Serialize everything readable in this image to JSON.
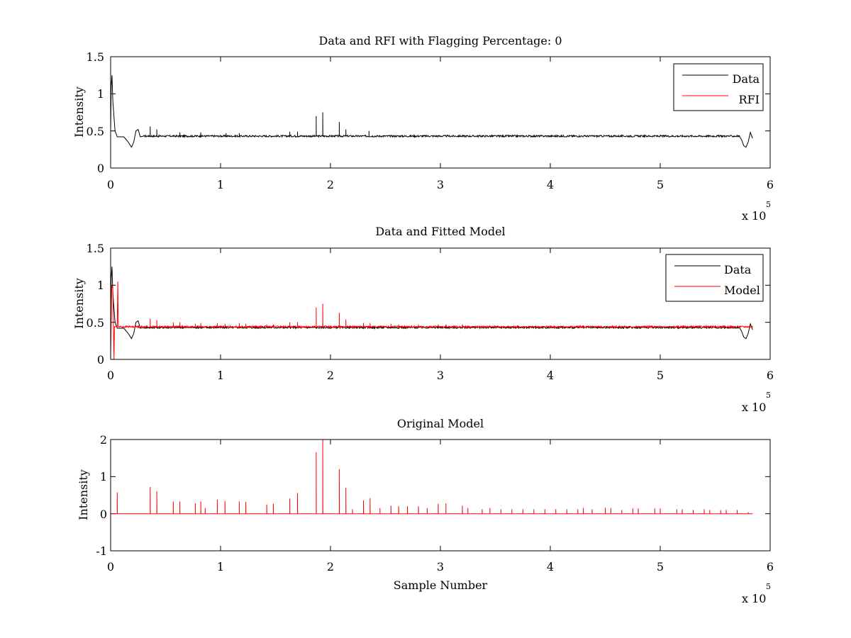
{
  "chart_data": [
    {
      "type": "line",
      "title": "Data and RFI with Flagging Percentage: 0",
      "xlabel": "",
      "ylabel": "Intensity",
      "x_exponent": "x 10",
      "x_exponent_power": "5",
      "xlim": [
        0,
        6
      ],
      "ylim": [
        0,
        1.5
      ],
      "xticks": [
        "0",
        "1",
        "2",
        "3",
        "4",
        "5",
        "6"
      ],
      "yticks": [
        "0",
        "0.5",
        "1",
        "1.5"
      ],
      "legend_position": "top-right",
      "series": [
        {
          "name": "Data",
          "color": "#000000",
          "baseline": 0.43,
          "edge_start": [
            [
              0,
              0.5
            ],
            [
              0.005,
              1.1
            ],
            [
              0.012,
              1.25
            ],
            [
              0.02,
              0.9
            ],
            [
              0.04,
              0.5
            ],
            [
              0.06,
              0.42
            ],
            [
              0.12,
              0.42
            ],
            [
              0.16,
              0.35
            ],
            [
              0.19,
              0.28
            ],
            [
              0.21,
              0.35
            ],
            [
              0.23,
              0.5
            ],
            [
              0.25,
              0.52
            ],
            [
              0.27,
              0.42
            ],
            [
              0.3,
              0.43
            ]
          ],
          "edge_end": [
            [
              5.72,
              0.43
            ],
            [
              5.74,
              0.38
            ],
            [
              5.76,
              0.3
            ],
            [
              5.78,
              0.28
            ],
            [
              5.8,
              0.35
            ],
            [
              5.82,
              0.48
            ],
            [
              5.84,
              0.4
            ]
          ],
          "x_end": 5.84,
          "spikes": [
            [
              0.36,
              0.56
            ],
            [
              0.42,
              0.52
            ],
            [
              1.87,
              0.7
            ],
            [
              1.93,
              0.75
            ],
            [
              2.08,
              0.62
            ],
            [
              2.14,
              0.52
            ],
            [
              2.35,
              0.5
            ],
            [
              0.63,
              0.48
            ],
            [
              0.82,
              0.48
            ],
            [
              1.05,
              0.47
            ],
            [
              1.17,
              0.47
            ],
            [
              1.63,
              0.49
            ],
            [
              1.7,
              0.49
            ]
          ]
        },
        {
          "name": "RFI",
          "color": "#ff0000",
          "values": []
        }
      ]
    },
    {
      "type": "line",
      "title": "Data and Fitted Model",
      "xlabel": "",
      "ylabel": "Intensity",
      "x_exponent": "x 10",
      "x_exponent_power": "5",
      "xlim": [
        0,
        6
      ],
      "ylim": [
        0,
        1.5
      ],
      "xticks": [
        "0",
        "1",
        "2",
        "3",
        "4",
        "5",
        "6"
      ],
      "yticks": [
        "0",
        "0.5",
        "1",
        "1.5"
      ],
      "legend_position": "top-right",
      "series": [
        {
          "name": "Data",
          "color": "#000000",
          "baseline": 0.43,
          "edge_start": [
            [
              0,
              0.5
            ],
            [
              0.005,
              1.1
            ],
            [
              0.012,
              1.25
            ],
            [
              0.02,
              0.9
            ],
            [
              0.04,
              0.5
            ],
            [
              0.06,
              0.42
            ],
            [
              0.12,
              0.42
            ],
            [
              0.16,
              0.35
            ],
            [
              0.19,
              0.28
            ],
            [
              0.21,
              0.35
            ],
            [
              0.23,
              0.5
            ],
            [
              0.25,
              0.52
            ],
            [
              0.27,
              0.42
            ],
            [
              0.3,
              0.43
            ]
          ],
          "edge_end": [
            [
              5.72,
              0.43
            ],
            [
              5.74,
              0.38
            ],
            [
              5.76,
              0.3
            ],
            [
              5.78,
              0.28
            ],
            [
              5.8,
              0.35
            ],
            [
              5.82,
              0.48
            ],
            [
              5.84,
              0.4
            ]
          ],
          "x_end": 5.84,
          "spikes": []
        },
        {
          "name": "Model",
          "color": "#ff0000",
          "baseline": 0.44,
          "edge_start": [
            [
              0,
              0.0
            ],
            [
              0.01,
              1.0
            ],
            [
              0.02,
              0.95
            ],
            [
              0.03,
              0.0
            ],
            [
              0.035,
              0.44
            ],
            [
              0.06,
              0.44
            ],
            [
              0.065,
              1.05
            ],
            [
              0.07,
              0.44
            ]
          ],
          "edge_end": [
            [
              5.84,
              0.43
            ]
          ],
          "x_end": 5.84,
          "spikes": [
            [
              0.36,
              0.55
            ],
            [
              0.42,
              0.53
            ],
            [
              0.57,
              0.5
            ],
            [
              0.63,
              0.5
            ],
            [
              0.77,
              0.48
            ],
            [
              0.82,
              0.49
            ],
            [
              0.97,
              0.49
            ],
            [
              1.04,
              0.48
            ],
            [
              1.17,
              0.49
            ],
            [
              1.23,
              0.48
            ],
            [
              1.42,
              0.47
            ],
            [
              1.48,
              0.47
            ],
            [
              1.63,
              0.5
            ],
            [
              1.7,
              0.5
            ],
            [
              1.87,
              0.7
            ],
            [
              1.93,
              0.75
            ],
            [
              2.08,
              0.63
            ],
            [
              2.14,
              0.54
            ],
            [
              2.3,
              0.49
            ],
            [
              2.36,
              0.49
            ],
            [
              2.55,
              0.48
            ],
            [
              2.62,
              0.47
            ],
            [
              2.8,
              0.47
            ],
            [
              2.98,
              0.47
            ],
            [
              3.05,
              0.47
            ],
            [
              3.2,
              0.47
            ],
            [
              3.45,
              0.46
            ],
            [
              3.7,
              0.46
            ],
            [
              4.0,
              0.46
            ],
            [
              4.3,
              0.46
            ],
            [
              4.6,
              0.46
            ],
            [
              4.9,
              0.46
            ],
            [
              5.2,
              0.46
            ],
            [
              5.5,
              0.46
            ]
          ]
        }
      ]
    },
    {
      "type": "line",
      "title": "Original Model",
      "xlabel": "Sample Number",
      "ylabel": "Intensity",
      "x_exponent": "x 10",
      "x_exponent_power": "5",
      "xlim": [
        0,
        6
      ],
      "ylim": [
        -1,
        2
      ],
      "xticks": [
        "0",
        "1",
        "2",
        "3",
        "4",
        "5",
        "6"
      ],
      "yticks": [
        "-1",
        "0",
        "1",
        "2"
      ],
      "series": [
        {
          "name": "",
          "color": "#ff0000",
          "baseline": 0.0,
          "edge_start": [
            [
              0,
              0.0
            ]
          ],
          "edge_end": [
            [
              5.84,
              0.0
            ]
          ],
          "x_end": 5.84,
          "spikes": [
            [
              0.06,
              0.57
            ],
            [
              0.36,
              0.72
            ],
            [
              0.42,
              0.6
            ],
            [
              0.57,
              0.33
            ],
            [
              0.63,
              0.33
            ],
            [
              0.77,
              0.28
            ],
            [
              0.82,
              0.33
            ],
            [
              0.86,
              0.15
            ],
            [
              0.97,
              0.38
            ],
            [
              1.04,
              0.34
            ],
            [
              1.17,
              0.33
            ],
            [
              1.23,
              0.32
            ],
            [
              1.42,
              0.25
            ],
            [
              1.48,
              0.27
            ],
            [
              1.63,
              0.41
            ],
            [
              1.7,
              0.56
            ],
            [
              1.87,
              1.66
            ],
            [
              1.93,
              2.0
            ],
            [
              2.08,
              1.2
            ],
            [
              2.14,
              0.7
            ],
            [
              2.2,
              0.12
            ],
            [
              2.3,
              0.36
            ],
            [
              2.36,
              0.42
            ],
            [
              2.45,
              0.15
            ],
            [
              2.55,
              0.22
            ],
            [
              2.62,
              0.2
            ],
            [
              2.7,
              0.2
            ],
            [
              2.8,
              0.2
            ],
            [
              2.88,
              0.15
            ],
            [
              2.98,
              0.27
            ],
            [
              3.05,
              0.28
            ],
            [
              3.2,
              0.22
            ],
            [
              3.25,
              0.15
            ],
            [
              3.38,
              0.12
            ],
            [
              3.45,
              0.15
            ],
            [
              3.55,
              0.12
            ],
            [
              3.65,
              0.12
            ],
            [
              3.75,
              0.12
            ],
            [
              3.85,
              0.12
            ],
            [
              3.95,
              0.12
            ],
            [
              4.05,
              0.12
            ],
            [
              4.15,
              0.12
            ],
            [
              4.25,
              0.12
            ],
            [
              4.3,
              0.15
            ],
            [
              4.38,
              0.12
            ],
            [
              4.5,
              0.16
            ],
            [
              4.55,
              0.15
            ],
            [
              4.65,
              0.1
            ],
            [
              4.75,
              0.14
            ],
            [
              4.8,
              0.14
            ],
            [
              4.95,
              0.14
            ],
            [
              5.0,
              0.14
            ],
            [
              5.15,
              0.12
            ],
            [
              5.2,
              0.12
            ],
            [
              5.3,
              0.1
            ],
            [
              5.4,
              0.12
            ],
            [
              5.45,
              0.1
            ],
            [
              5.55,
              0.1
            ],
            [
              5.6,
              0.1
            ],
            [
              5.7,
              0.1
            ],
            [
              5.8,
              0.04
            ]
          ]
        }
      ]
    }
  ]
}
